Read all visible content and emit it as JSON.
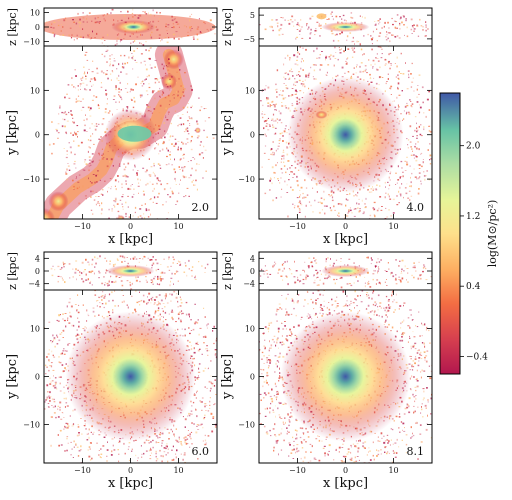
{
  "chart_data": {
    "type": "heatmap",
    "description": "",
    "panels": [
      {
        "time_label": "2.0",
        "projection_top": "xz",
        "projection_main": "xy",
        "xlim": [
          -18,
          18
        ],
        "ylim_main": [
          -19,
          20
        ],
        "ylim_top": [
          -13,
          13
        ],
        "x_ticks": [
          -10,
          0,
          10
        ],
        "y_ticks_main": [
          -10,
          0,
          10
        ],
        "y_ticks_top": [
          -10,
          0,
          10
        ],
        "x_tick_labels": [
          "−10",
          "0",
          "10"
        ],
        "y_tick_labels_main": [
          "−10",
          "0",
          "10"
        ],
        "y_tick_labels_top": [
          "−10",
          "0",
          "10"
        ],
        "x_label": "x [kpc]",
        "y_label": "y [kpc]",
        "z_label": "z [kpc]"
      },
      {
        "time_label": "4.0",
        "projection_top": "xz",
        "projection_main": "xy",
        "xlim": [
          -18,
          18
        ],
        "ylim_main": [
          -19,
          20
        ],
        "ylim_top": [
          -8,
          8
        ],
        "x_ticks": [
          -10,
          0,
          10
        ],
        "y_ticks_main": [
          -10,
          0,
          10
        ],
        "y_ticks_top": [
          -5,
          5
        ],
        "x_tick_labels": [
          "−10",
          "0",
          "10"
        ],
        "y_tick_labels_main": [
          "−10",
          "0",
          "10"
        ],
        "y_tick_labels_top": [
          "−5",
          "5"
        ],
        "x_label": "x [kpc]",
        "y_label": "y [kpc]",
        "z_label": "z [kpc]"
      },
      {
        "time_label": "6.0",
        "projection_top": "xz",
        "projection_main": "xy",
        "xlim": [
          -18,
          18
        ],
        "ylim_main": [
          -18,
          18
        ],
        "ylim_top": [
          -6,
          6
        ],
        "x_ticks": [
          -10,
          0,
          10
        ],
        "y_ticks_main": [
          -10,
          0,
          10
        ],
        "y_ticks_top": [
          -4,
          0,
          4
        ],
        "x_tick_labels": [
          "−10",
          "0",
          "10"
        ],
        "y_tick_labels_main": [
          "−10",
          "0",
          "10"
        ],
        "y_tick_labels_top": [
          "−4",
          "0",
          "4"
        ],
        "x_label": "x [kpc]",
        "y_label": "y [kpc]",
        "z_label": "z [kpc]"
      },
      {
        "time_label": "8.1",
        "projection_top": "xz",
        "projection_main": "xy",
        "xlim": [
          -18,
          18
        ],
        "ylim_main": [
          -18,
          18
        ],
        "ylim_top": [
          -6,
          6
        ],
        "x_ticks": [
          -10,
          0,
          10
        ],
        "y_ticks_main": [
          -10,
          0,
          10
        ],
        "y_ticks_top": [
          -4,
          0,
          4
        ],
        "x_tick_labels": [
          "−10",
          "0",
          "10"
        ],
        "y_tick_labels_main": [
          "−10",
          "0",
          "10"
        ],
        "y_tick_labels_top": [
          "−4",
          "0",
          "4"
        ],
        "x_label": "x [kpc]",
        "y_label": "y [kpc]",
        "z_label": "z [kpc]"
      }
    ],
    "colorbar": {
      "label": "log(M⊙/pc²)",
      "range": [
        -0.6,
        2.6
      ],
      "ticks": [
        2.0,
        1.2,
        0.4,
        -0.4
      ],
      "tick_labels": [
        "2.0",
        "1.2",
        "0.4",
        "−0.4"
      ],
      "colormap": "Spectral"
    }
  }
}
